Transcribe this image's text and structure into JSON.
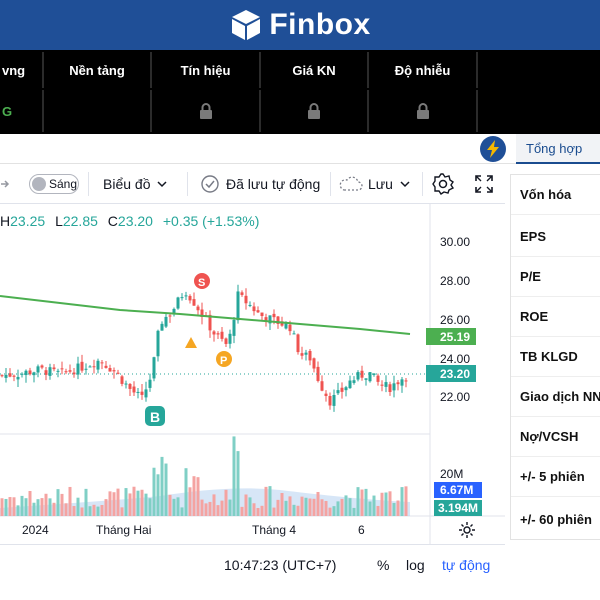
{
  "brand": {
    "name": "Finbox",
    "color": "#1f4f97"
  },
  "signals": {
    "headers": [
      "vng",
      "Nền tảng",
      "Tín hiệu",
      "Giá KN",
      "Độ nhiễu",
      ""
    ],
    "first_value": "G"
  },
  "tabs": {
    "summary": "Tổng hợp",
    "bolt_icon": "lightning-icon"
  },
  "toolbar": {
    "theme_toggle": "Sáng",
    "chart_type": "Biểu đồ",
    "autosave": "Đã lưu tự động",
    "save": "Lưu"
  },
  "chart": {
    "ohlc": {
      "h_label": "H",
      "h": "23.25",
      "l_label": "L",
      "l": "22.85",
      "c_label": "C",
      "c": "23.20",
      "change": "+0.35 (+1.53%)"
    },
    "price_ticks": [
      "30.00",
      "28.00",
      "26.00",
      "24.00",
      "22.00"
    ],
    "volume_tick": "20M",
    "x_labels": [
      "2024",
      "Tháng Hai",
      "Tháng 4",
      "6"
    ],
    "badges": {
      "ma": "25.19",
      "price": "23.20",
      "vol1": "6.67M",
      "vol2": "3.194M"
    },
    "markers": {
      "buy": "B",
      "sell": "S",
      "profit": "P"
    },
    "colors": {
      "up": "#26a69a",
      "down": "#ef5350",
      "ma": "#4caf50",
      "vol_area": "#a7c7ee"
    }
  },
  "status": {
    "time": "10:47:23 (UTC+7)",
    "percent": "%",
    "log": "log",
    "auto": "tự động"
  },
  "metrics": [
    "Vốn hóa",
    "EPS",
    "P/E",
    "ROE",
    "TB KLGD",
    "Giao dịch NN",
    "Nợ/VCSH",
    "+/- 5 phiên",
    "+/- 60 phiên"
  ]
}
